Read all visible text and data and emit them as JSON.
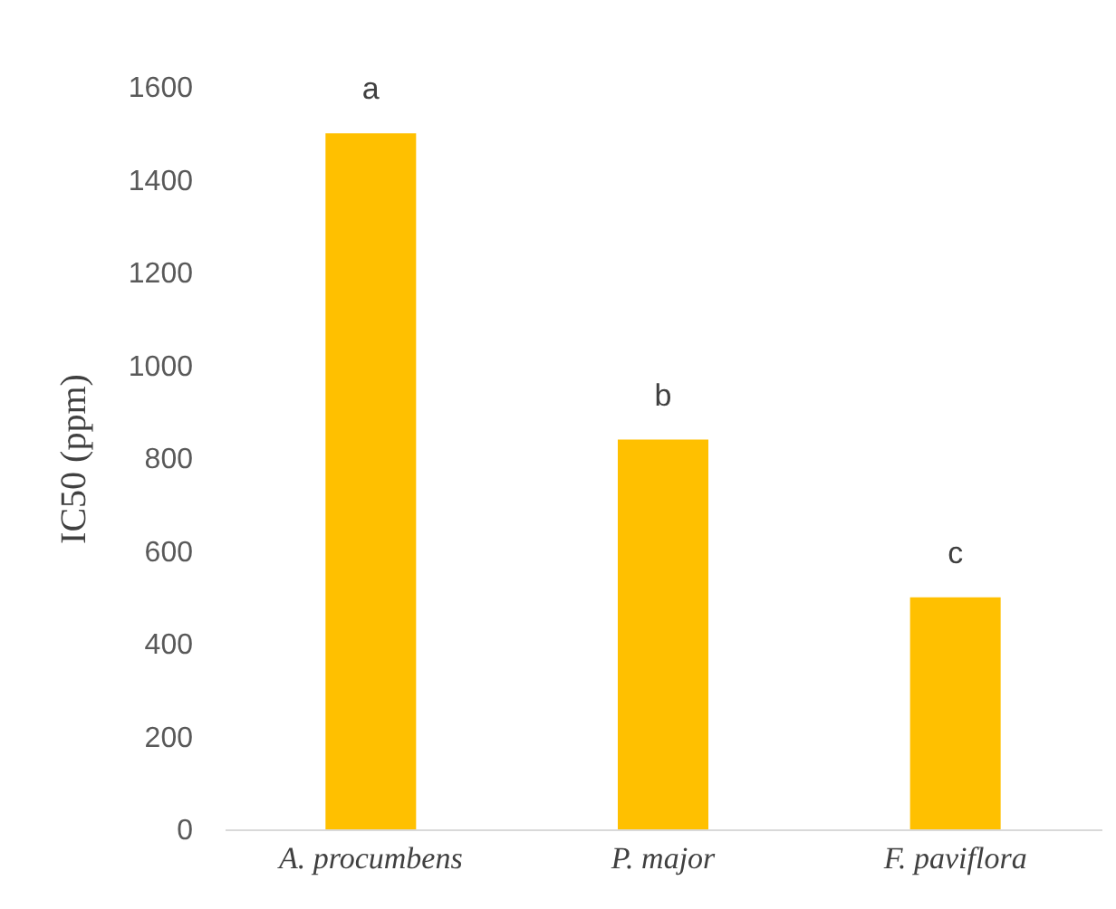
{
  "chart_data": {
    "type": "bar",
    "ylabel": "IC50 (ppm)",
    "categories": [
      "A. procumbens",
      "P. major",
      "F. paviflora"
    ],
    "values": [
      1500,
      840,
      500
    ],
    "color": "#ffc000",
    "ylim": [
      0,
      1600
    ],
    "yticks": [
      0,
      200,
      400,
      600,
      800,
      1000,
      1200,
      1400,
      1600
    ],
    "grid": false,
    "annotations": [
      {
        "text": "a",
        "x": "A. procumbens",
        "y": 1500
      },
      {
        "text": "b",
        "x": "P. major",
        "y": 840
      },
      {
        "text": "c",
        "x": "F. paviflora",
        "y": 500
      }
    ]
  }
}
